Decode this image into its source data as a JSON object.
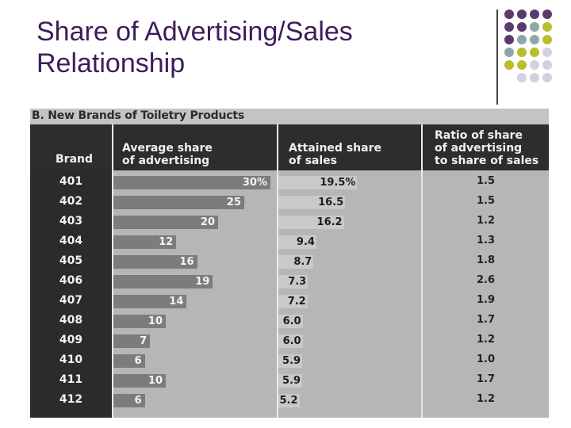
{
  "slide": {
    "title_line1": "Share of Advertising/Sales",
    "title_line2": "Relationship",
    "accent_colors": {
      "purple": "#5b3a6e",
      "teal": "#8ea7a6",
      "olive": "#b9bf2c",
      "lavender": "#d3d0e2"
    }
  },
  "figure": {
    "title": "B. New Brands of Toiletry Products",
    "headers": {
      "brand": "Brand",
      "advertising": "Average share\nof advertising",
      "sales": "Attained share\nof sales",
      "ratio": "Ratio of share\nof advertising\nto share of sales"
    }
  },
  "chart_data": {
    "type": "table",
    "title": "B. New Brands of Toiletry Products",
    "columns": [
      "Brand",
      "Average share of advertising",
      "Attained share of sales",
      "Ratio of share of advertising to share of sales"
    ],
    "rows": [
      {
        "brand": "401",
        "adv": 30,
        "adv_label": "30%",
        "sales": 19.5,
        "sales_label": "19.5%",
        "ratio": "1.5"
      },
      {
        "brand": "402",
        "adv": 25,
        "adv_label": "25",
        "sales": 16.5,
        "sales_label": "16.5",
        "ratio": "1.5"
      },
      {
        "brand": "403",
        "adv": 20,
        "adv_label": "20",
        "sales": 16.2,
        "sales_label": "16.2",
        "ratio": "1.2"
      },
      {
        "brand": "404",
        "adv": 12,
        "adv_label": "12",
        "sales": 9.4,
        "sales_label": "9.4",
        "ratio": "1.3"
      },
      {
        "brand": "405",
        "adv": 16,
        "adv_label": "16",
        "sales": 8.7,
        "sales_label": "8.7",
        "ratio": "1.8"
      },
      {
        "brand": "406",
        "adv": 19,
        "adv_label": "19",
        "sales": 7.3,
        "sales_label": "7.3",
        "ratio": "2.6"
      },
      {
        "brand": "407",
        "adv": 14,
        "adv_label": "14",
        "sales": 7.2,
        "sales_label": "7.2",
        "ratio": "1.9"
      },
      {
        "brand": "408",
        "adv": 10,
        "adv_label": "10",
        "sales": 6.0,
        "sales_label": "6.0",
        "ratio": "1.7"
      },
      {
        "brand": "409",
        "adv": 7,
        "adv_label": "7",
        "sales": 6.0,
        "sales_label": "6.0",
        "ratio": "1.2"
      },
      {
        "brand": "410",
        "adv": 6,
        "adv_label": "6",
        "sales": 5.9,
        "sales_label": "5.9",
        "ratio": "1.0"
      },
      {
        "brand": "411",
        "adv": 10,
        "adv_label": "10",
        "sales": 5.9,
        "sales_label": "5.9",
        "ratio": "1.7"
      },
      {
        "brand": "412",
        "adv": 6,
        "adv_label": "6",
        "sales": 5.2,
        "sales_label": "5.2",
        "ratio": "1.2"
      }
    ]
  }
}
